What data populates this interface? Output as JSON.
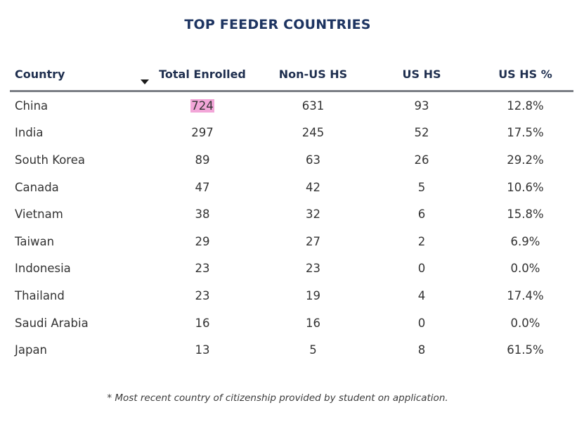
{
  "title": "TOP FEEDER COUNTRIES",
  "columns": [
    "Country",
    "Total Enrolled",
    "Non-US HS",
    "US HS",
    "US HS %"
  ],
  "rows": [
    {
      "country": "China",
      "total": "724",
      "non_us": "631",
      "us": "93",
      "pct": "12.8%"
    },
    {
      "country": "India",
      "total": "297",
      "non_us": "245",
      "us": "52",
      "pct": "17.5%"
    },
    {
      "country": "South Korea",
      "total": "89",
      "non_us": "63",
      "us": "26",
      "pct": "29.2%"
    },
    {
      "country": "Canada",
      "total": "47",
      "non_us": "42",
      "us": "5",
      "pct": "10.6%"
    },
    {
      "country": "Vietnam",
      "total": "38",
      "non_us": "32",
      "us": "6",
      "pct": "15.8%"
    },
    {
      "country": "Taiwan",
      "total": "29",
      "non_us": "27",
      "us": "2",
      "pct": "6.9%"
    },
    {
      "country": "Indonesia",
      "total": "23",
      "non_us": "23",
      "us": "0",
      "pct": "0.0%"
    },
    {
      "country": "Thailand",
      "total": "23",
      "non_us": "19",
      "us": "4",
      "pct": "17.4%"
    },
    {
      "country": "Saudi Arabia",
      "total": "16",
      "non_us": "16",
      "us": "0",
      "pct": "0.0%"
    },
    {
      "country": "Japan",
      "total": "13",
      "non_us": "5",
      "us": "8",
      "pct": "61.5%"
    }
  ],
  "footnote": "* Most recent country of citizenship provided by student on application.",
  "colors": {
    "title": "#1d3461",
    "highlight": "#f2a6d8",
    "rule": "#7b7f85"
  },
  "sort_icon": "sort-descending-icon"
}
